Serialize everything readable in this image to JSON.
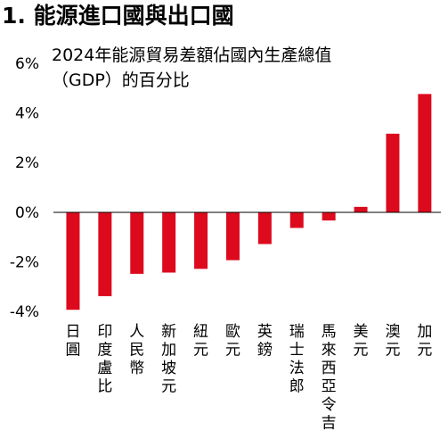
{
  "page": {
    "title": "1. 能源進口國與出口國"
  },
  "chart_data": {
    "type": "bar",
    "title": "2024年能源貿易差額佔國內生產總值",
    "subtitle": "（GDP）的百分比",
    "categories": [
      "日圓",
      "印度盧比",
      "人民幣",
      "新加坡元",
      "紐元",
      "歐元",
      "英鎊",
      "瑞士法郎",
      "馬來西亞令吉",
      "美元",
      "澳元",
      "加元"
    ],
    "series": [
      {
        "values": [
          -3.9,
          -3.35,
          -2.45,
          -2.4,
          -2.25,
          -1.9,
          -1.25,
          -0.6,
          -0.3,
          0.25,
          3.2,
          4.8
        ],
        "color": "#dd0a1e"
      }
    ],
    "yticks": [
      "6%",
      "4%",
      "2%",
      "0%",
      "-2%",
      "-4%"
    ],
    "ylim": [
      -4,
      6
    ],
    "xlabel": "",
    "ylabel": "",
    "grid": false,
    "legend": "none"
  }
}
